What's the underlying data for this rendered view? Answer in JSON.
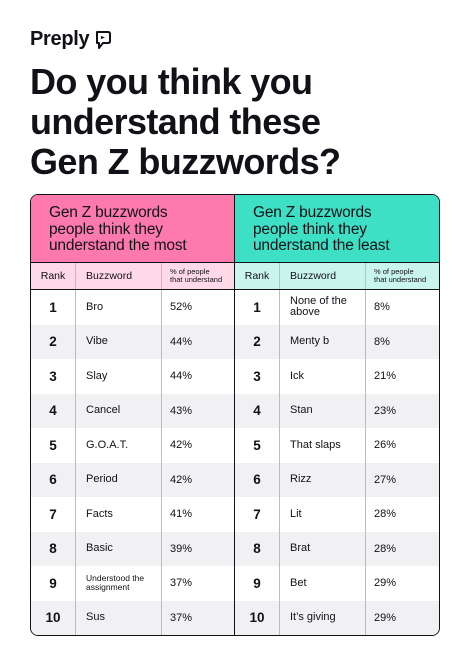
{
  "brand": {
    "name": "Preply"
  },
  "headline": {
    "line1": "Do you think you",
    "line2": "understand these",
    "line3": "Gen Z buzzwords?"
  },
  "colors": {
    "most_header": "#ff7aac",
    "least_header": "#3de0c4",
    "text": "#121117"
  },
  "most": {
    "title_line1": "Gen Z buzzwords",
    "title_line2": "people think they",
    "title_line3": "understand the most",
    "col_rank": "Rank",
    "col_word": "Buzzword",
    "col_pct_line1": "% of people",
    "col_pct_line2": "that understand",
    "rows": [
      {
        "rank": "1",
        "word": "Bro",
        "pct": "52%"
      },
      {
        "rank": "2",
        "word": "Vibe",
        "pct": "44%"
      },
      {
        "rank": "3",
        "word": "Slay",
        "pct": "44%"
      },
      {
        "rank": "4",
        "word": "Cancel",
        "pct": "43%"
      },
      {
        "rank": "5",
        "word": "G.O.A.T.",
        "pct": "42%"
      },
      {
        "rank": "6",
        "word": "Period",
        "pct": "42%"
      },
      {
        "rank": "7",
        "word": "Facts",
        "pct": "41%"
      },
      {
        "rank": "8",
        "word": "Basic",
        "pct": "39%"
      },
      {
        "rank": "9",
        "word": "Understood the assignment",
        "pct": "37%"
      },
      {
        "rank": "10",
        "word": "Sus",
        "pct": "37%"
      }
    ]
  },
  "least": {
    "title_line1": "Gen Z buzzwords",
    "title_line2": "people think they",
    "title_line3": "understand the least",
    "col_rank": "Rank",
    "col_word": "Buzzword",
    "col_pct_line1": "% of people",
    "col_pct_line2": "that understand",
    "rows": [
      {
        "rank": "1",
        "word": "None of the above",
        "pct": "8%"
      },
      {
        "rank": "2",
        "word": "Menty b",
        "pct": "8%"
      },
      {
        "rank": "3",
        "word": "Ick",
        "pct": "21%"
      },
      {
        "rank": "4",
        "word": "Stan",
        "pct": "23%"
      },
      {
        "rank": "5",
        "word": "That slaps",
        "pct": "26%"
      },
      {
        "rank": "6",
        "word": "Rizz",
        "pct": "27%"
      },
      {
        "rank": "7",
        "word": "Lit",
        "pct": "28%"
      },
      {
        "rank": "8",
        "word": "Brat",
        "pct": "28%"
      },
      {
        "rank": "9",
        "word": "Bet",
        "pct": "29%"
      },
      {
        "rank": "10",
        "word": "It’s giving",
        "pct": "29%"
      }
    ]
  }
}
